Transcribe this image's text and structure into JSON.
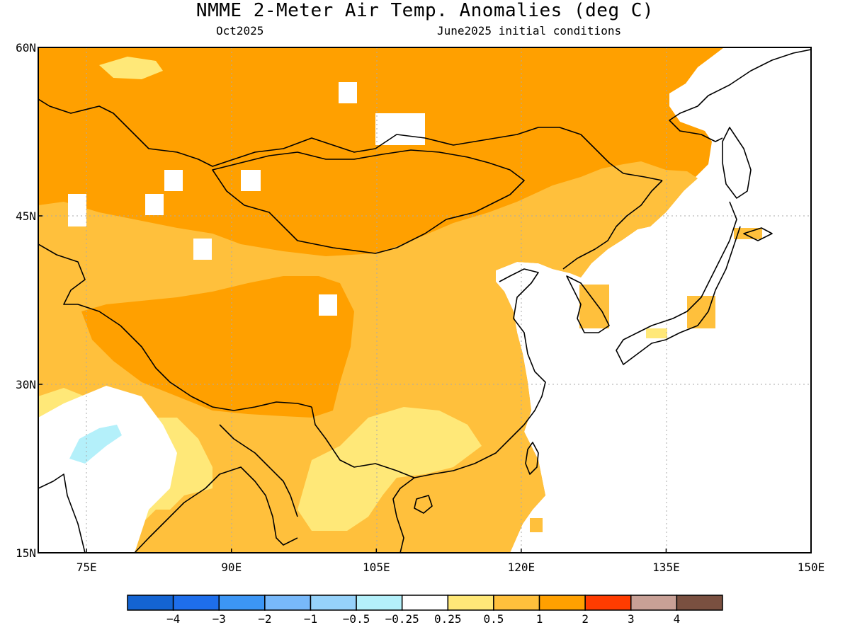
{
  "title": "NMME 2-Meter Air Temp. Anomalies (deg C)",
  "subtitle_left": "Oct2025",
  "subtitle_right": "June2025 initial conditions",
  "map": {
    "lon_range": [
      70,
      150
    ],
    "lat_range": [
      15,
      60
    ],
    "lon_ticks": [
      {
        "value": 75,
        "label": "75E"
      },
      {
        "value": 90,
        "label": "90E"
      },
      {
        "value": 105,
        "label": "105E"
      },
      {
        "value": 120,
        "label": "120E"
      },
      {
        "value": 135,
        "label": "135E"
      },
      {
        "value": 150,
        "label": "150E"
      }
    ],
    "lat_ticks": [
      {
        "value": 15,
        "label": "15N"
      },
      {
        "value": 30,
        "label": "30N"
      },
      {
        "value": 45,
        "label": "45N"
      },
      {
        "value": 60,
        "label": "60N"
      }
    ],
    "gridlines": "dotted"
  },
  "colorbar": {
    "colors": [
      "#1464d2",
      "#1e6eeb",
      "#3c96f5",
      "#78b9fa",
      "#96d2fa",
      "#b4f0fa",
      "#ffffff",
      "#ffe878",
      "#ffc03c",
      "#ffa000",
      "#ff3c00",
      "#c8a096",
      "#7a5040"
    ],
    "labels": [
      "-4",
      "-3",
      "-2",
      "-1",
      "-0.5",
      "-0.25",
      "0.25",
      "0.5",
      "1",
      "2",
      "3",
      "4"
    ]
  },
  "regions": {
    "anomaly_1_to_2": "#ffa000",
    "anomaly_05_to_1": "#ffc03c",
    "anomaly_025_to_05": "#ffe878",
    "anomaly_neg05_to_neg025": "#b4f0fa"
  }
}
